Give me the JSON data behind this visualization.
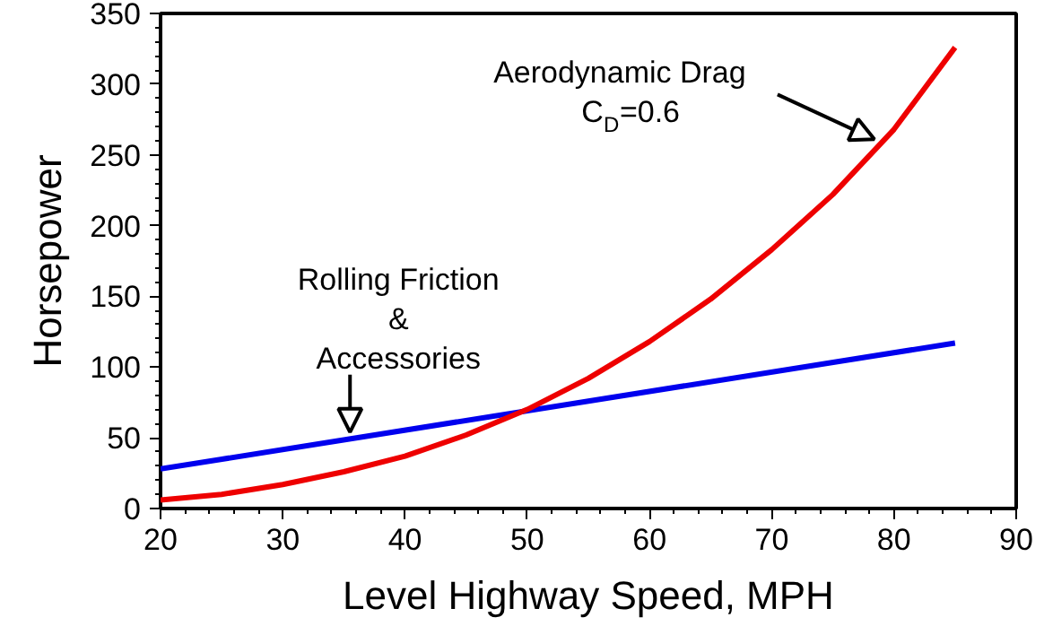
{
  "chart_data": {
    "type": "line",
    "xlabel": "Level Highway Speed, MPH",
    "ylabel": "Horsepower",
    "xlim": [
      20,
      90
    ],
    "xticks": [
      20,
      30,
      40,
      50,
      60,
      70,
      80,
      90
    ],
    "ylim": [
      0,
      350
    ],
    "yticks": [
      0,
      50,
      100,
      150,
      200,
      250,
      300,
      350
    ],
    "grid": false,
    "marker": "none",
    "line_style": "solid",
    "series": [
      {
        "color": "#0000ee",
        "x": [
          20,
          85
        ],
        "values": [
          28,
          117
        ]
      },
      {
        "color": "#ee0000",
        "x": [
          20,
          25,
          30,
          35,
          40,
          45,
          50,
          55,
          60,
          65,
          70,
          75,
          80,
          85
        ],
        "values": [
          6,
          10,
          17,
          26,
          37,
          52,
          70,
          92,
          118,
          148,
          183,
          222,
          268,
          326
        ]
      }
    ],
    "annotations": [
      {
        "text": "Rolling Friction\n&\nAccessories",
        "x": 35.5,
        "y": 54
      },
      {
        "text": "Aerodynamic Drag\nC$_{D}$=0.6",
        "x": 78.4,
        "y": 261
      }
    ]
  }
}
